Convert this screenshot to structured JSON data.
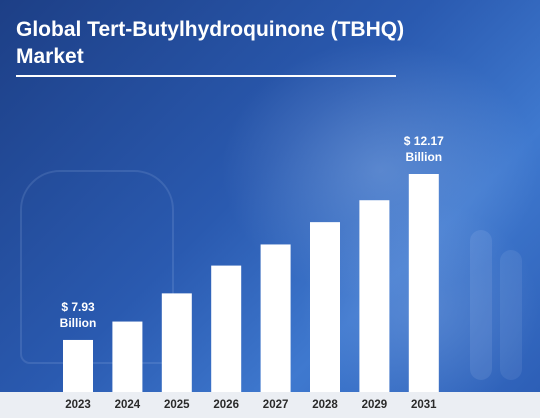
{
  "title": "Global Tert-Butylhydroquinone (TBHQ) Market",
  "chart_data": {
    "type": "bar",
    "title": "Global Tert-Butylhydroquinone (TBHQ) Market",
    "categories": [
      "2023",
      "2024",
      "2025",
      "2026",
      "2027",
      "2028",
      "2029",
      "2031"
    ],
    "values": [
      7.93,
      8.4,
      9.12,
      9.83,
      10.37,
      10.94,
      11.5,
      12.17
    ],
    "labels": {
      "2023": [
        "$ 7.93",
        "Billion"
      ],
      "2031": [
        "$ 12.17",
        "Billion"
      ]
    },
    "unit": "Billion USD",
    "xlabel": "",
    "ylabel": "",
    "ylim": [
      6.6,
      12.17
    ],
    "grid": false,
    "legend": "none",
    "colors": {
      "bar": "#ffffff",
      "label": "#ffffff",
      "tick": "#2a2a2a",
      "axis_band": "#ebeef3"
    }
  }
}
